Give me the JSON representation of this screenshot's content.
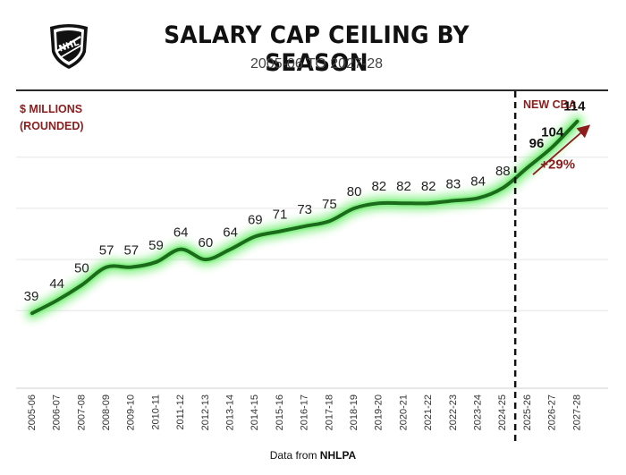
{
  "header": {
    "title": "SALARY CAP CEILING BY SEASON",
    "subtitle": "2005-06 TO 2027-28",
    "logo_text": "NHL"
  },
  "chart_data": {
    "type": "line",
    "title": "SALARY CAP CEILING BY SEASON",
    "subtitle": "2005-06 TO 2027-28",
    "ylabel_line1": "$ MILLIONS",
    "ylabel_line2": "(ROUNDED)",
    "categories": [
      "2005-06",
      "2006-07",
      "2007-08",
      "2008-09",
      "2009-10",
      "2010-11",
      "2011-12",
      "2012-13",
      "2013-14",
      "2014-15",
      "2015-16",
      "2016-17",
      "2017-18",
      "2018-19",
      "2019-20",
      "2020-21",
      "2021-22",
      "2022-23",
      "2023-24",
      "2024-25",
      "2025-26",
      "2026-27",
      "2027-28"
    ],
    "values": [
      39,
      44,
      50,
      57,
      57,
      59,
      64,
      60,
      64,
      69,
      71,
      73,
      75,
      80,
      82,
      82,
      82,
      83,
      84,
      88,
      96,
      104,
      114
    ],
    "value_labels": [
      "39",
      "44",
      "50",
      "57",
      "57",
      "59",
      "64",
      "60",
      "64",
      "69",
      "71",
      "73",
      "75",
      "80",
      "82",
      "82",
      "82",
      "83",
      "84",
      "88",
      "96",
      "104",
      "114"
    ],
    "ylim": [
      10,
      123
    ],
    "grid": true,
    "marker_label": "NEW CBA",
    "marker_between": [
      "2024-25",
      "2025-26"
    ],
    "growth_label": "+29%",
    "line_color": "#1a6b1a",
    "glow_color": "#7ef07e",
    "accent_color": "#8b1d1d"
  },
  "footer": {
    "prefix": "Data from ",
    "source": "NHLPA"
  }
}
